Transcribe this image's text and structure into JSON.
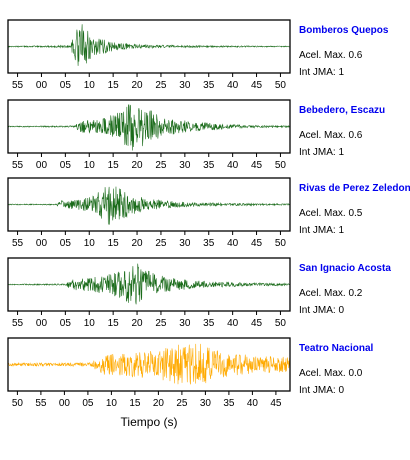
{
  "chart_data": {
    "type": "line",
    "xlabel": "Tiempo (s)",
    "panels": [
      {
        "station": "Bomberos Quepos",
        "accel_label": "Acel. Max.",
        "accel_value": "0.6",
        "intensity_label": "Int JMA:",
        "intensity_value": "1",
        "color": "#1a6b1a",
        "xlim": [
          53,
          112
        ],
        "tick_values": [
          55,
          60,
          65,
          70,
          75,
          80,
          85,
          90,
          95,
          100,
          105,
          110
        ],
        "tick_labels": [
          "55",
          "00",
          "05",
          "10",
          "15",
          "20",
          "25",
          "30",
          "35",
          "40",
          "45",
          "50"
        ],
        "show_tick_labels": true,
        "baseline_amplitude": 0.02,
        "envelope": [
          [
            53,
            0.02
          ],
          [
            61,
            0.03
          ],
          [
            66,
            0.05
          ],
          [
            67.5,
            0.85
          ],
          [
            68.5,
            1.0
          ],
          [
            70,
            0.55
          ],
          [
            72,
            0.35
          ],
          [
            75,
            0.18
          ],
          [
            80,
            0.08
          ],
          [
            90,
            0.04
          ],
          [
            112,
            0.02
          ]
        ]
      },
      {
        "station": "Bebedero, Escazu",
        "accel_label": "Acel. Max.",
        "accel_value": "0.6",
        "intensity_label": "Int JMA:",
        "intensity_value": "1",
        "color": "#1a6b1a",
        "xlim": [
          53,
          112
        ],
        "tick_values": [
          55,
          60,
          65,
          70,
          75,
          80,
          85,
          90,
          95,
          100,
          105,
          110
        ],
        "tick_labels": [
          "55",
          "00",
          "05",
          "10",
          "15",
          "20",
          "25",
          "30",
          "35",
          "40",
          "45",
          "50"
        ],
        "show_tick_labels": true,
        "baseline_amplitude": 0.02,
        "envelope": [
          [
            53,
            0.02
          ],
          [
            67,
            0.03
          ],
          [
            68,
            0.25
          ],
          [
            72,
            0.3
          ],
          [
            75,
            0.5
          ],
          [
            77,
            0.75
          ],
          [
            79,
            1.0
          ],
          [
            81,
            0.85
          ],
          [
            84,
            0.55
          ],
          [
            88,
            0.3
          ],
          [
            95,
            0.15
          ],
          [
            103,
            0.06
          ],
          [
            112,
            0.03
          ]
        ]
      },
      {
        "station": "Rivas de Perez Zeledon",
        "accel_label": "Acel. Max.",
        "accel_value": "0.5",
        "intensity_label": "Int JMA:",
        "intensity_value": "1",
        "color": "#1a6b1a",
        "xlim": [
          53,
          112
        ],
        "tick_values": [
          55,
          60,
          65,
          70,
          75,
          80,
          85,
          90,
          95,
          100,
          105,
          110
        ],
        "tick_labels": [
          "55",
          "00",
          "05",
          "10",
          "15",
          "20",
          "25",
          "30",
          "35",
          "40",
          "45",
          "50"
        ],
        "show_tick_labels": true,
        "baseline_amplitude": 0.02,
        "envelope": [
          [
            53,
            0.02
          ],
          [
            63,
            0.02
          ],
          [
            64,
            0.15
          ],
          [
            68,
            0.22
          ],
          [
            71,
            0.35
          ],
          [
            73,
            0.7
          ],
          [
            74.5,
            1.0
          ],
          [
            76,
            0.7
          ],
          [
            79,
            0.4
          ],
          [
            83,
            0.22
          ],
          [
            90,
            0.1
          ],
          [
            100,
            0.05
          ],
          [
            112,
            0.03
          ]
        ]
      },
      {
        "station": "San Ignacio Acosta",
        "accel_label": "Acel. Max.",
        "accel_value": "0.2",
        "intensity_label": "Int JMA:",
        "intensity_value": "0",
        "color": "#1a6b1a",
        "xlim": [
          53,
          112
        ],
        "tick_values": [
          55,
          60,
          65,
          70,
          75,
          80,
          85,
          90,
          95,
          100,
          105,
          110
        ],
        "tick_labels": [
          "55",
          "00",
          "05",
          "10",
          "15",
          "20",
          "25",
          "30",
          "35",
          "40",
          "45",
          "50"
        ],
        "show_tick_labels": true,
        "baseline_amplitude": 0.02,
        "envelope": [
          [
            53,
            0.02
          ],
          [
            65,
            0.03
          ],
          [
            66,
            0.2
          ],
          [
            70,
            0.3
          ],
          [
            75,
            0.45
          ],
          [
            78,
            0.75
          ],
          [
            79.5,
            1.0
          ],
          [
            81,
            0.7
          ],
          [
            84,
            0.4
          ],
          [
            88,
            0.25
          ],
          [
            95,
            0.12
          ],
          [
            105,
            0.06
          ],
          [
            112,
            0.04
          ]
        ]
      },
      {
        "station": "Teatro Nacional",
        "accel_label": "Acel. Max.",
        "accel_value": "0.0",
        "intensity_label": "Int JMA:",
        "intensity_value": "0",
        "color": "#ffaa00",
        "xlim": [
          48,
          108
        ],
        "tick_values": [
          50,
          55,
          60,
          65,
          70,
          75,
          80,
          85,
          90,
          95,
          100,
          105
        ],
        "tick_labels": [
          "50",
          "55",
          "00",
          "05",
          "10",
          "15",
          "20",
          "25",
          "30",
          "35",
          "40",
          "45"
        ],
        "show_tick_labels": true,
        "baseline_amplitude": 0.06,
        "envelope": [
          [
            48,
            0.06
          ],
          [
            56,
            0.07
          ],
          [
            66,
            0.08
          ],
          [
            67,
            0.4
          ],
          [
            70,
            0.45
          ],
          [
            74,
            0.5
          ],
          [
            80,
            0.6
          ],
          [
            84,
            0.8
          ],
          [
            86,
            1.0
          ],
          [
            89,
            0.85
          ],
          [
            92,
            0.6
          ],
          [
            96,
            0.45
          ],
          [
            102,
            0.35
          ],
          [
            108,
            0.3
          ]
        ]
      }
    ]
  }
}
